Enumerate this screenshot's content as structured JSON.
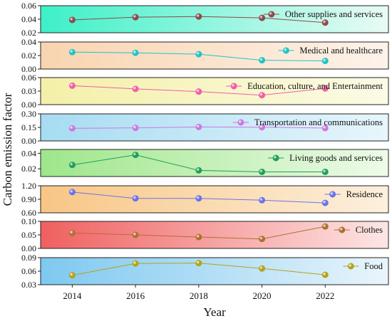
{
  "chart_data": {
    "type": "line",
    "ylabel": "Carbon emission factor",
    "xlabel": "Year",
    "x": [
      2014,
      2016,
      2018,
      2020,
      2022
    ],
    "x_ticks": [
      "2014",
      "2016",
      "2018",
      "2020",
      "2022"
    ],
    "grid": false,
    "legend_placement": "top-right",
    "panels": [
      {
        "series": "Other supplies and services",
        "values": [
          0.039,
          0.043,
          0.044,
          0.042,
          0.035
        ],
        "ylim": [
          0.02,
          0.06
        ],
        "yticks": [
          "0.02",
          "0.04",
          "0.06"
        ],
        "color": "#8b4a4a",
        "bg_left": "#3df0c8",
        "bg_right": "#e9fbf5"
      },
      {
        "series": "Medical and healthcare",
        "values": [
          0.025,
          0.024,
          0.022,
          0.013,
          0.012
        ],
        "ylim": [
          0.0,
          0.04
        ],
        "yticks": [
          "0.00",
          "0.02",
          "0.04"
        ],
        "color": "#1fc4c4",
        "bg_left": "#f9d4b0",
        "bg_right": "#fdf3ea"
      },
      {
        "series": "Education, culture, and Entertainment",
        "values": [
          0.042,
          0.035,
          0.029,
          0.021,
          0.036
        ],
        "ylim": [
          0.0,
          0.06
        ],
        "yticks": [
          "0.00",
          "0.03",
          "0.06"
        ],
        "color": "#f25ca8",
        "bg_left": "#f4f0a8",
        "bg_right": "#fbfbe6"
      },
      {
        "series": "Transportation and communications",
        "values": [
          0.14,
          0.145,
          0.155,
          0.152,
          0.143
        ],
        "ylim": [
          0.0,
          0.3
        ],
        "yticks": [
          "0.00",
          "0.15",
          "0.30"
        ],
        "color": "#cc77e0",
        "bg_left": "#a6dcf2",
        "bg_right": "#e8f6fc"
      },
      {
        "series": "Living goods and services",
        "values": [
          0.025,
          0.038,
          0.018,
          0.016,
          0.016
        ],
        "ylim": [
          0.01,
          0.045
        ],
        "yticks": [
          "0.02",
          "0.04"
        ],
        "color": "#1f9e5a",
        "bg_left": "#9ee68a",
        "bg_right": "#eefbe9"
      },
      {
        "series": "Residence",
        "values": [
          1.06,
          0.92,
          0.92,
          0.88,
          0.82
        ],
        "ylim": [
          0.6,
          1.2
        ],
        "yticks": [
          "0.60",
          "0.90",
          "1.20"
        ],
        "color": "#6a73e8",
        "bg_left": "#f8c685",
        "bg_right": "#fdf0de"
      },
      {
        "series": "Clothes",
        "values": [
          0.057,
          0.05,
          0.042,
          0.035,
          0.081
        ],
        "ylim": [
          0.0,
          0.1
        ],
        "yticks": [
          "0.00",
          "0.05",
          "0.10"
        ],
        "color": "#b06f30",
        "bg_left": "#f06060",
        "bg_right": "#fde6e6"
      },
      {
        "series": "Food",
        "values": [
          0.051,
          0.077,
          0.078,
          0.066,
          0.052
        ],
        "ylim": [
          0.03,
          0.09
        ],
        "yticks": [
          "0.03",
          "0.06",
          "0.09"
        ],
        "color": "#b5a21a",
        "bg_left": "#7ec8f0",
        "bg_right": "#e9f5fc"
      }
    ]
  }
}
